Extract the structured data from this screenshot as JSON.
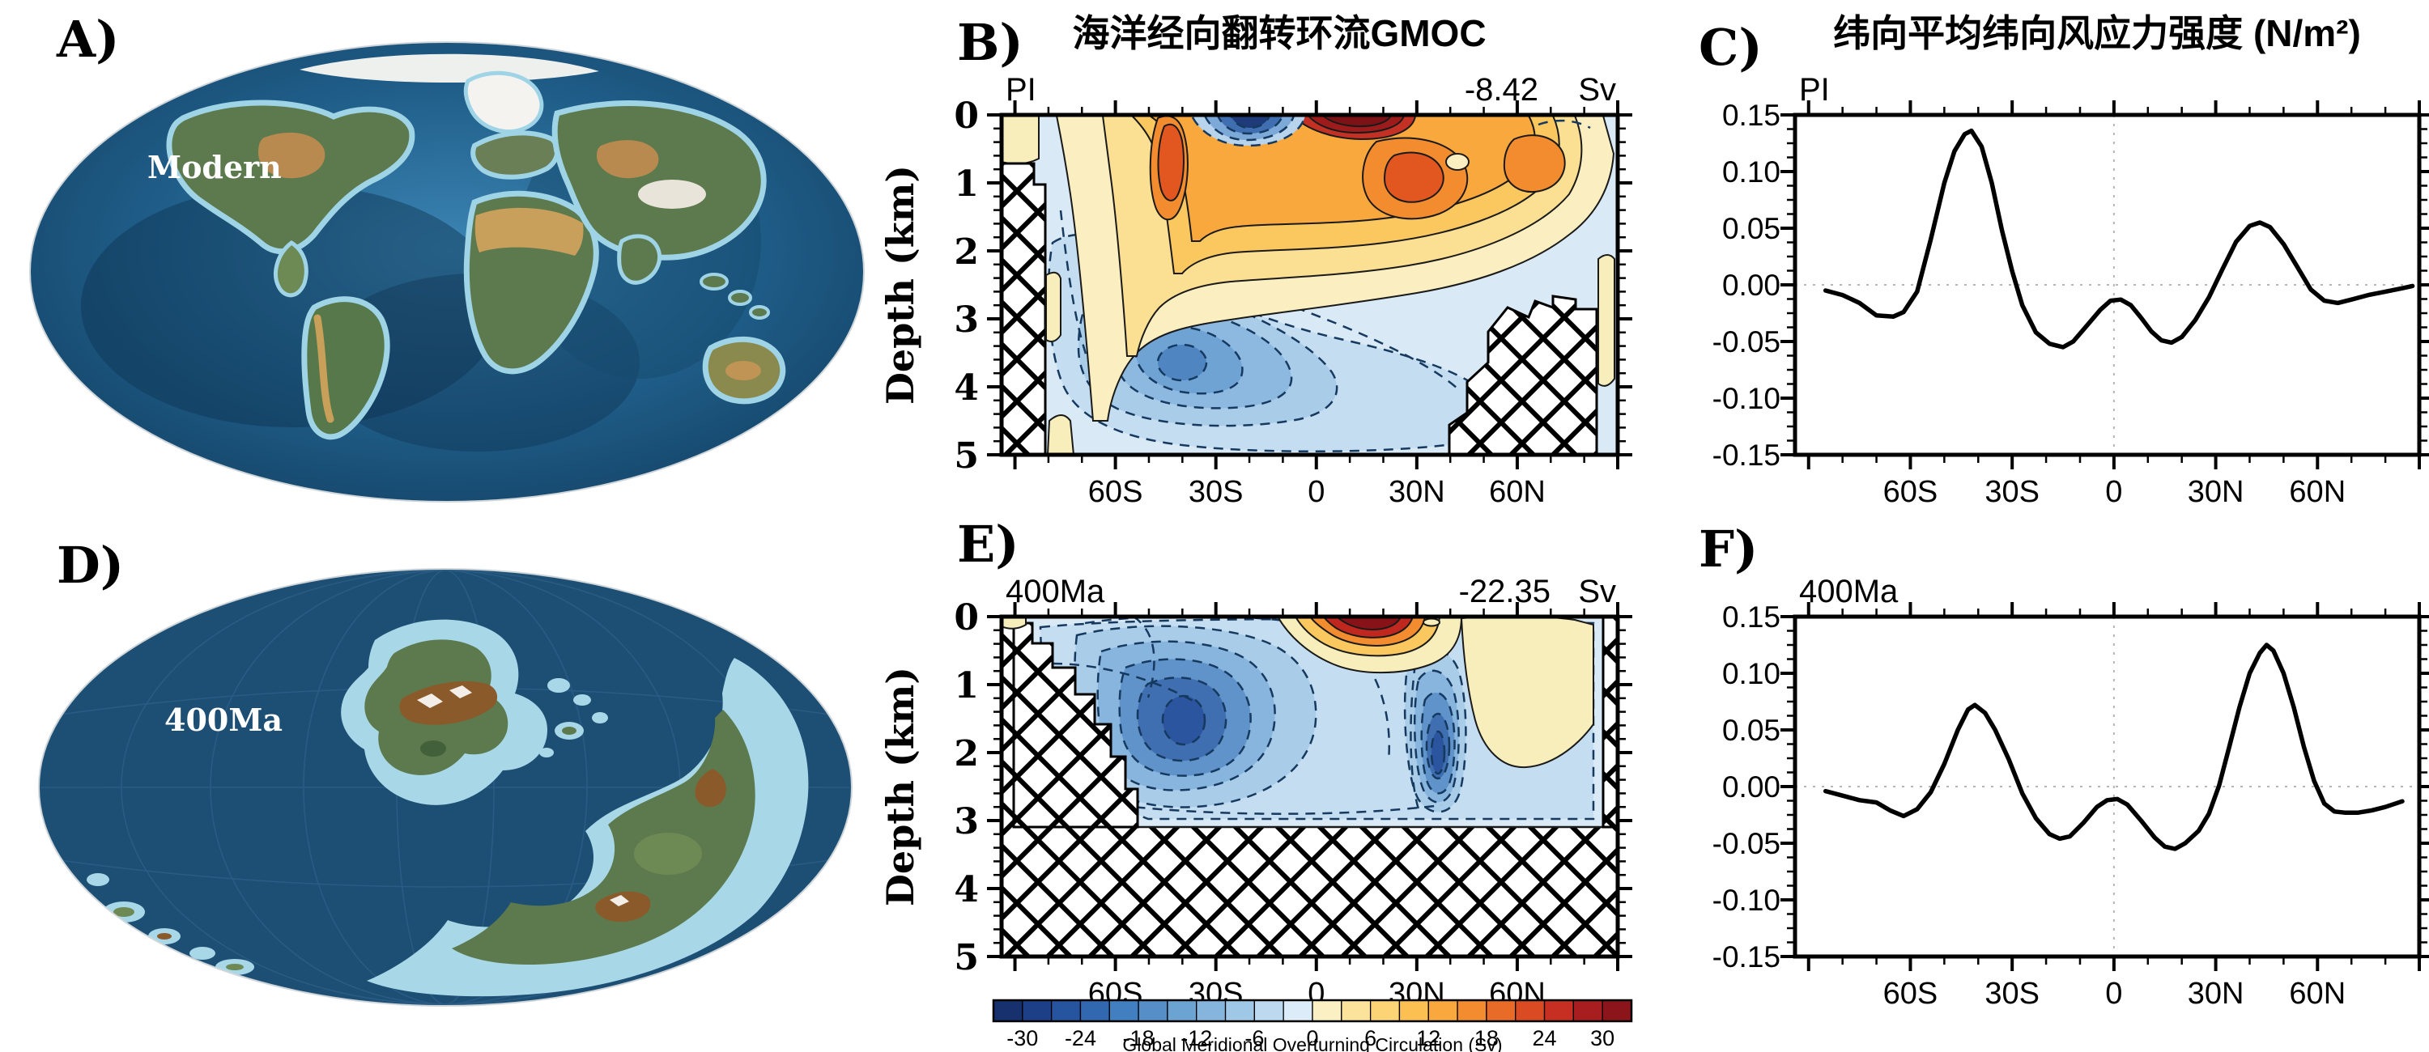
{
  "titles": {
    "gmoc": "海洋经向翻转环流GMOC",
    "wind": "纬向平均纬向风应力强度 (N/m²)"
  },
  "panels": {
    "A": {
      "letter": "A)",
      "map_label": "Modern"
    },
    "B": {
      "letter": "B)",
      "tag": "PI",
      "value": "-8.42",
      "unit": "Sv"
    },
    "C": {
      "letter": "C)",
      "tag": "PI"
    },
    "D": {
      "letter": "D)",
      "map_label": "400Ma"
    },
    "E": {
      "letter": "E)",
      "tag": "400Ma",
      "value": "-22.35",
      "unit": "Sv"
    },
    "F": {
      "letter": "F)",
      "tag": "400Ma"
    }
  },
  "axes": {
    "depth_label": "Depth (km)",
    "depth_ticks": [
      "0",
      "1",
      "2",
      "3",
      "4",
      "5"
    ],
    "lat_ticks": [
      {
        "lat": -60,
        "label": "60S"
      },
      {
        "lat": -30,
        "label": "30S"
      },
      {
        "lat": 0,
        "label": "0"
      },
      {
        "lat": 30,
        "label": "30N"
      },
      {
        "lat": 60,
        "label": "60N"
      }
    ],
    "wind_yticks": [
      {
        "v": 0.15,
        "label": "0.15"
      },
      {
        "v": 0.1,
        "label": "0.10"
      },
      {
        "v": 0.05,
        "label": "0.05"
      },
      {
        "v": 0.0,
        "label": "0.00"
      },
      {
        "v": -0.05,
        "label": "-0.05"
      },
      {
        "v": -0.1,
        "label": "-0.10"
      },
      {
        "v": -0.15,
        "label": "-0.15"
      }
    ]
  },
  "colorbar": {
    "caption": "Global Meridional Overturning Circulation  (Sv)",
    "vmin": -33,
    "vmax": 33,
    "step": 3,
    "ticks": [
      {
        "v": -30,
        "label": "-30"
      },
      {
        "v": -24,
        "label": "-24"
      },
      {
        "v": -18,
        "label": "-18"
      },
      {
        "v": -12,
        "label": "-12"
      },
      {
        "v": -6,
        "label": "-6"
      },
      {
        "v": 0,
        "label": "0"
      },
      {
        "v": 6,
        "label": "6"
      },
      {
        "v": 12,
        "label": "12"
      },
      {
        "v": 18,
        "label": "18"
      },
      {
        "v": 24,
        "label": "24"
      },
      {
        "v": 30,
        "label": "30"
      }
    ],
    "colors": [
      "#16316e",
      "#1d3f87",
      "#27549f",
      "#3268b0",
      "#417fc0",
      "#568fc7",
      "#6ba3d3",
      "#85b5dd",
      "#9fc7e6",
      "#bcd9ef",
      "#dcecf8",
      "#faf0c4",
      "#fbe39c",
      "#fcd475",
      "#fcc052",
      "#f9a83d",
      "#f28c2e",
      "#e86c27",
      "#da4a23",
      "#c62f21",
      "#a81e20",
      "#8c151b"
    ]
  },
  "chart_data": [
    {
      "id": "B",
      "type": "heatmap",
      "subtype": "filled-contour-section",
      "tag": "PI",
      "extremum_label": "-8.42",
      "units": "Sv",
      "xlabel_ticks": [
        "60S",
        "30S",
        "0",
        "30N",
        "60N"
      ],
      "ylabel": "Depth (km)",
      "ylim_km": [
        0,
        5
      ],
      "xlim_deg": [
        -94,
        90
      ],
      "contour_interval_sv": 3,
      "color_range_sv": [
        -33,
        33
      ],
      "features": "Strong positive (orange/red, up to ~21 Sv) overturning cell filling 0-2.5 km from 50S to 70N with surface maximum near 5N-20N; shallow negative (dark blue) cell at surface 30S-5S; broad negative deep cell (light blue, to ~-12 Sv) below 2.5 km centered near 35S; hatched bathymetry at far south and in the deep northern basin"
    },
    {
      "id": "C",
      "type": "line",
      "tag": "PI",
      "xlabel_ticks": [
        "60S",
        "30S",
        "0",
        "30N",
        "60N"
      ],
      "ylim": [
        -0.15,
        0.15
      ],
      "xlim_deg": [
        -94,
        90
      ],
      "grid": "dashed zero lines at 0.00 and equator",
      "x": [
        -85,
        -80,
        -75,
        -70,
        -65,
        -62,
        -58,
        -54,
        -50,
        -47,
        -44,
        -42,
        -39,
        -36,
        -33,
        -30,
        -27,
        -23,
        -19,
        -15,
        -12,
        -8,
        -4,
        -1,
        2,
        5,
        8,
        11,
        14,
        17,
        20,
        24,
        28,
        32,
        36,
        40,
        43,
        46,
        50,
        54,
        58,
        62,
        66,
        70,
        75,
        80,
        85,
        88
      ],
      "y": [
        -0.005,
        -0.009,
        -0.016,
        -0.027,
        -0.028,
        -0.024,
        -0.006,
        0.04,
        0.09,
        0.118,
        0.133,
        0.136,
        0.122,
        0.09,
        0.048,
        0.012,
        -0.018,
        -0.042,
        -0.052,
        -0.055,
        -0.05,
        -0.036,
        -0.022,
        -0.014,
        -0.013,
        -0.018,
        -0.029,
        -0.041,
        -0.049,
        -0.051,
        -0.046,
        -0.031,
        -0.011,
        0.014,
        0.038,
        0.052,
        0.055,
        0.051,
        0.036,
        0.016,
        -0.004,
        -0.014,
        -0.016,
        -0.013,
        -0.009,
        -0.006,
        -0.003,
        -0.001
      ]
    },
    {
      "id": "E",
      "type": "heatmap",
      "subtype": "filled-contour-section",
      "tag": "400Ma",
      "extremum_label": "-22.35",
      "units": "Sv",
      "xlabel_ticks": [
        "60S",
        "30S",
        "0",
        "30N",
        "60N"
      ],
      "ylabel": "Depth (km)",
      "ylim_km": [
        0,
        5
      ],
      "xlim_deg": [
        -94,
        90
      ],
      "contour_interval_sv": 3,
      "color_range_sv": [
        -33,
        33
      ],
      "features": "Ocean only ~0-3.1 km deep (hatched below and at far south-west staircase); dominant negative (blue) overturning with deep cells near 45S (~-20 Sv) and 45N (~-22 Sv); small strong positive (dark red) surface cell near 5N-25N; weak positive (pale yellow) region in the north-east upper ocean"
    },
    {
      "id": "F",
      "type": "line",
      "tag": "400Ma",
      "xlabel_ticks": [
        "60S",
        "30S",
        "0",
        "30N",
        "60N"
      ],
      "ylim": [
        -0.15,
        0.15
      ],
      "xlim_deg": [
        -94,
        90
      ],
      "grid": "dashed zero lines at 0.00 and equator",
      "x": [
        -85,
        -80,
        -75,
        -70,
        -66,
        -62,
        -58,
        -54,
        -50,
        -46,
        -43,
        -41,
        -38,
        -35,
        -31,
        -27,
        -23,
        -19,
        -16,
        -13,
        -9,
        -5,
        -2,
        1,
        4,
        8,
        12,
        15,
        18,
        21,
        25,
        28,
        31,
        34,
        37,
        40,
        43,
        45,
        47,
        50,
        53,
        56,
        59,
        62,
        65,
        68,
        72,
        76,
        80,
        85
      ],
      "y": [
        -0.004,
        -0.008,
        -0.012,
        -0.014,
        -0.021,
        -0.026,
        -0.02,
        -0.005,
        0.02,
        0.05,
        0.068,
        0.072,
        0.065,
        0.05,
        0.024,
        -0.006,
        -0.028,
        -0.042,
        -0.046,
        -0.044,
        -0.032,
        -0.018,
        -0.012,
        -0.011,
        -0.016,
        -0.03,
        -0.045,
        -0.053,
        -0.055,
        -0.05,
        -0.039,
        -0.024,
        0.001,
        0.035,
        0.07,
        0.1,
        0.118,
        0.125,
        0.12,
        0.1,
        0.07,
        0.035,
        0.005,
        -0.015,
        -0.022,
        -0.023,
        -0.023,
        -0.021,
        -0.018,
        -0.013
      ]
    }
  ]
}
